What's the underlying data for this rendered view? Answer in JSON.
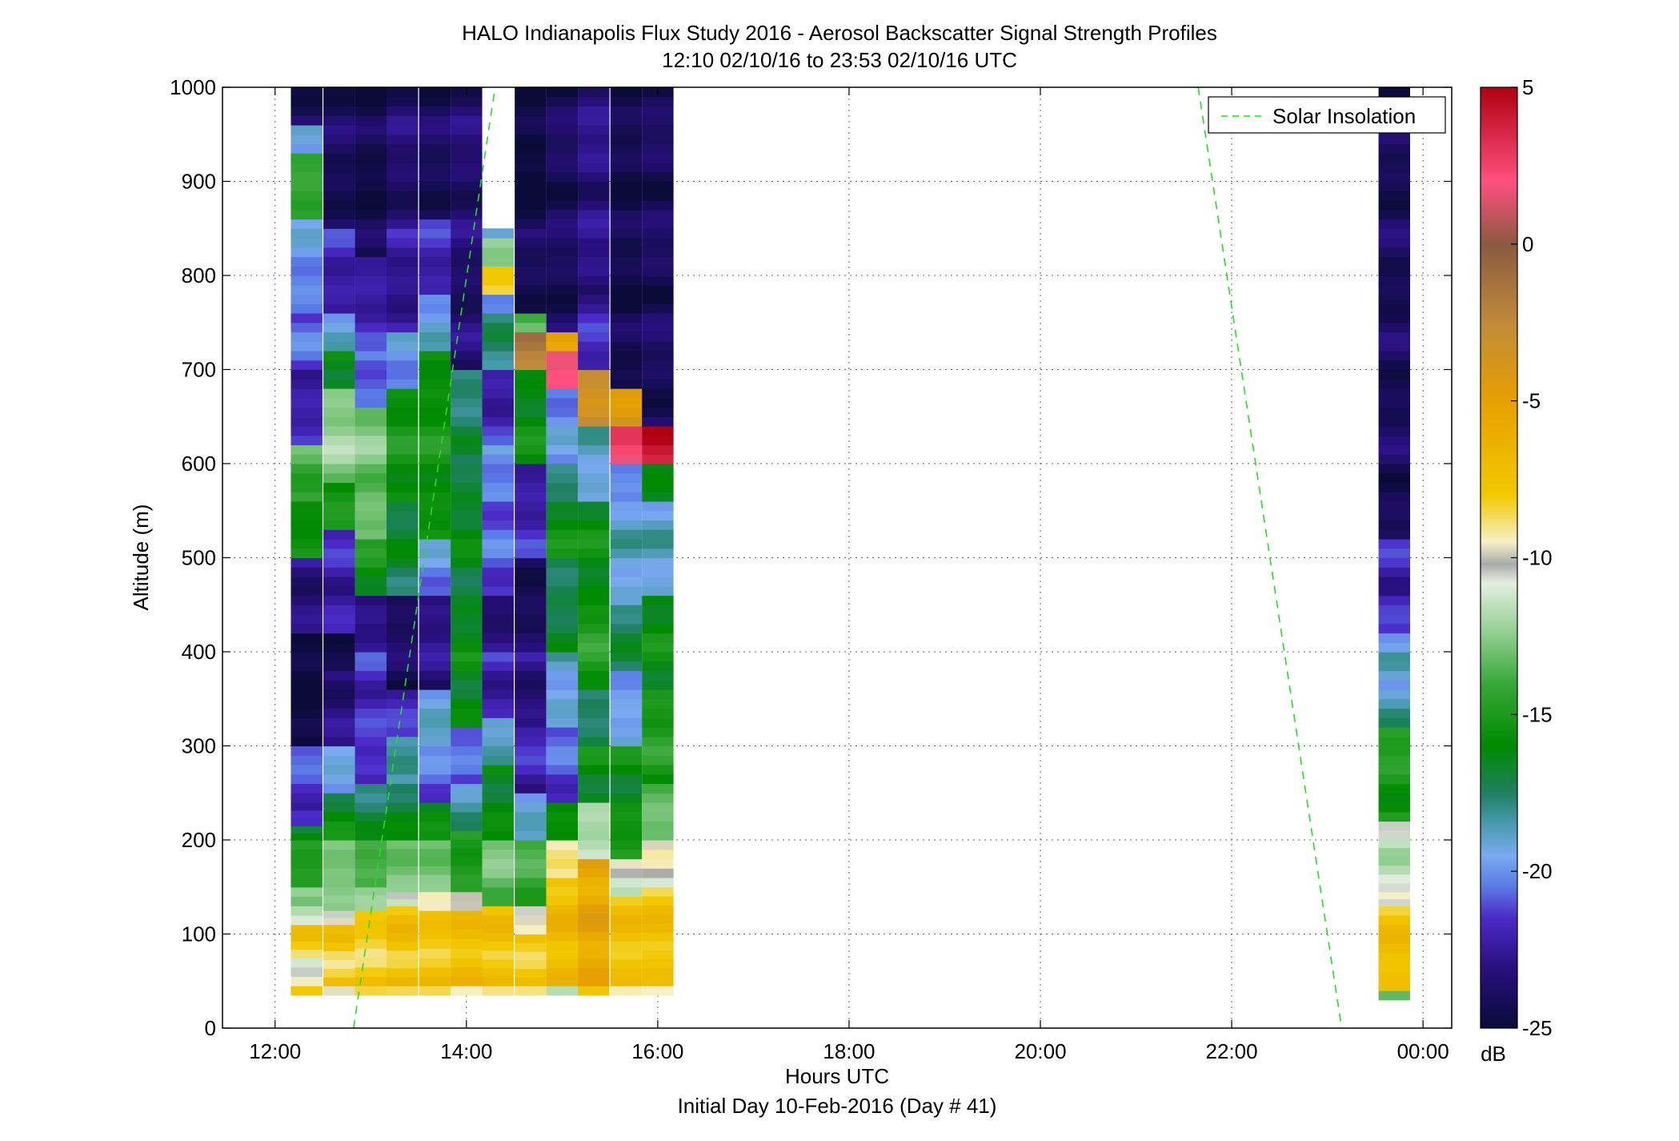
{
  "chart_data": {
    "type": "heatmap",
    "title": "HALO Indianapolis Flux Study 2016 - Aerosol Backscatter Signal Strength Profiles",
    "subtitle": "12:10 02/10/16 to 23:53 02/10/16  UTC",
    "xlabel": "Hours UTC",
    "xlabel2": "Initial Day 10-Feb-2016 (Day # 41)",
    "ylabel": "Altitude (m)",
    "xlim_hours": [
      11.45,
      24.3
    ],
    "ylim": [
      0,
      1000
    ],
    "x_ticks": [
      {
        "value": 12,
        "label": "12:00"
      },
      {
        "value": 14,
        "label": "14:00"
      },
      {
        "value": 16,
        "label": "16:00"
      },
      {
        "value": 18,
        "label": "18:00"
      },
      {
        "value": 20,
        "label": "20:00"
      },
      {
        "value": 22,
        "label": "22:00"
      },
      {
        "value": 24,
        "label": "00:00"
      }
    ],
    "y_ticks": [
      0,
      100,
      200,
      300,
      400,
      500,
      600,
      700,
      800,
      900,
      1000
    ],
    "grid": true,
    "legend": {
      "position": "top-right",
      "entries": [
        {
          "name": "Solar Insolation",
          "color": "#22e022",
          "style": "dashed"
        }
      ]
    },
    "colorbar": {
      "label": "dB",
      "range": [
        -25,
        5
      ],
      "ticks": [
        5,
        0,
        -5,
        -10,
        -15,
        -20,
        -25
      ],
      "stops": [
        {
          "v": -25,
          "c": "#0b0b3a"
        },
        {
          "v": -23,
          "c": "#2a1080"
        },
        {
          "v": -21.5,
          "c": "#4b2ac8"
        },
        {
          "v": -20.5,
          "c": "#5a7ae6"
        },
        {
          "v": -19.5,
          "c": "#7aaaf0"
        },
        {
          "v": -18.5,
          "c": "#4a9ab0"
        },
        {
          "v": -17.5,
          "c": "#1e8060"
        },
        {
          "v": -16,
          "c": "#008a00"
        },
        {
          "v": -14,
          "c": "#3aa83a"
        },
        {
          "v": -12.5,
          "c": "#8ccc8c"
        },
        {
          "v": -10.8,
          "c": "#e4eee0"
        },
        {
          "v": -10.2,
          "c": "#aaaaaa"
        },
        {
          "v": -9.5,
          "c": "#f6f0c8"
        },
        {
          "v": -8,
          "c": "#f2c800"
        },
        {
          "v": -5,
          "c": "#e6a000"
        },
        {
          "v": -2.5,
          "c": "#c08a3a"
        },
        {
          "v": 0,
          "c": "#8a5a40"
        },
        {
          "v": 2,
          "c": "#ff5080"
        },
        {
          "v": 5,
          "c": "#b00010"
        }
      ]
    },
    "solar_insolation_lines": [
      {
        "x": [
          12.82,
          14.3
        ],
        "y": [
          0,
          1000
        ]
      },
      {
        "x": [
          21.65,
          23.15
        ],
        "y": [
          1000,
          0
        ]
      }
    ],
    "profiles": [
      {
        "time": 12.33,
        "segments": [
          [
            35,
            45,
            -9
          ],
          [
            45,
            75,
            -10.2
          ],
          [
            75,
            110,
            -8
          ],
          [
            110,
            130,
            -10.8
          ],
          [
            130,
            150,
            -12
          ],
          [
            150,
            200,
            -15
          ],
          [
            200,
            215,
            -17
          ],
          [
            215,
            240,
            -22
          ],
          [
            240,
            300,
            -21
          ],
          [
            300,
            420,
            -25
          ],
          [
            420,
            500,
            -23
          ],
          [
            500,
            560,
            -16
          ],
          [
            560,
            620,
            -14
          ],
          [
            620,
            700,
            -22
          ],
          [
            700,
            760,
            -21
          ],
          [
            760,
            860,
            -20
          ],
          [
            860,
            930,
            -14
          ],
          [
            930,
            960,
            -20
          ],
          [
            960,
            1000,
            -24
          ]
        ]
      },
      {
        "time": 12.67,
        "segments": [
          [
            35,
            45,
            -10.8
          ],
          [
            45,
            110,
            -8
          ],
          [
            110,
            125,
            -9.5
          ],
          [
            125,
            150,
            -12.5
          ],
          [
            150,
            200,
            -13
          ],
          [
            200,
            250,
            -16
          ],
          [
            250,
            300,
            -19.5
          ],
          [
            300,
            380,
            -23
          ],
          [
            380,
            420,
            -25
          ],
          [
            420,
            530,
            -22
          ],
          [
            530,
            580,
            -15
          ],
          [
            580,
            680,
            -12.5
          ],
          [
            680,
            720,
            -16
          ],
          [
            720,
            760,
            -19.5
          ],
          [
            760,
            850,
            -22
          ],
          [
            850,
            1000,
            -24
          ]
        ]
      },
      {
        "time": 13.0,
        "segments": [
          [
            35,
            45,
            -9.5
          ],
          [
            45,
            125,
            -8
          ],
          [
            125,
            150,
            -12
          ],
          [
            150,
            200,
            -14
          ],
          [
            200,
            260,
            -17
          ],
          [
            260,
            300,
            -22
          ],
          [
            300,
            400,
            -21.5
          ],
          [
            400,
            460,
            -23
          ],
          [
            460,
            520,
            -15.5
          ],
          [
            520,
            660,
            -13
          ],
          [
            660,
            720,
            -20.5
          ],
          [
            720,
            820,
            -22
          ],
          [
            820,
            1000,
            -24.5
          ]
        ]
      },
      {
        "time": 13.33,
        "segments": [
          [
            35,
            45,
            -9.5
          ],
          [
            45,
            130,
            -7.5
          ],
          [
            130,
            145,
            -10.2
          ],
          [
            145,
            200,
            -13
          ],
          [
            200,
            260,
            -16.5
          ],
          [
            260,
            310,
            -18.5
          ],
          [
            310,
            360,
            -21.5
          ],
          [
            360,
            460,
            -24
          ],
          [
            460,
            560,
            -17
          ],
          [
            560,
            680,
            -15.5
          ],
          [
            680,
            740,
            -20
          ],
          [
            740,
            850,
            -22.5
          ],
          [
            850,
            1000,
            -23.5
          ]
        ]
      },
      {
        "time": 13.67,
        "segments": [
          [
            35,
            45,
            -9.5
          ],
          [
            45,
            125,
            -7.5
          ],
          [
            125,
            145,
            -9.5
          ],
          [
            145,
            200,
            -13
          ],
          [
            200,
            240,
            -16
          ],
          [
            240,
            300,
            -20.5
          ],
          [
            300,
            360,
            -19
          ],
          [
            360,
            460,
            -23
          ],
          [
            460,
            520,
            -20
          ],
          [
            520,
            720,
            -15.5
          ],
          [
            720,
            780,
            -19.5
          ],
          [
            780,
            860,
            -22
          ],
          [
            860,
            1000,
            -24
          ]
        ]
      },
      {
        "time": 14.0,
        "segments": [
          [
            35,
            45,
            -10.2
          ],
          [
            45,
            125,
            -7
          ],
          [
            125,
            145,
            -10
          ],
          [
            145,
            210,
            -15
          ],
          [
            210,
            260,
            -18
          ],
          [
            260,
            320,
            -21
          ],
          [
            320,
            400,
            -16
          ],
          [
            400,
            600,
            -16.5
          ],
          [
            600,
            700,
            -17.5
          ],
          [
            700,
            1000,
            -23.5
          ]
        ]
      },
      {
        "time": 14.33,
        "segments": [
          [
            35,
            45,
            -9.5
          ],
          [
            45,
            130,
            -7.5
          ],
          [
            130,
            200,
            -13
          ],
          [
            200,
            280,
            -16
          ],
          [
            280,
            330,
            -19
          ],
          [
            330,
            400,
            -22
          ],
          [
            400,
            460,
            -23.5
          ],
          [
            460,
            560,
            -21
          ],
          [
            560,
            620,
            -20
          ],
          [
            620,
            700,
            -22
          ],
          [
            700,
            760,
            -18
          ],
          [
            760,
            780,
            -19.5
          ],
          [
            780,
            810,
            -8
          ],
          [
            810,
            840,
            -12.5
          ],
          [
            840,
            850,
            -20
          ]
        ]
      },
      {
        "time": 14.67,
        "segments": [
          [
            35,
            45,
            -9.5
          ],
          [
            45,
            100,
            -8
          ],
          [
            100,
            130,
            -10.2
          ],
          [
            130,
            200,
            -14
          ],
          [
            200,
            250,
            -19
          ],
          [
            250,
            320,
            -22
          ],
          [
            320,
            400,
            -23
          ],
          [
            400,
            500,
            -24
          ],
          [
            500,
            600,
            -22
          ],
          [
            600,
            700,
            -16
          ],
          [
            700,
            740,
            -2
          ],
          [
            740,
            760,
            -14
          ],
          [
            760,
            850,
            -24
          ],
          [
            850,
            1000,
            -25
          ]
        ]
      },
      {
        "time": 15.0,
        "segments": [
          [
            35,
            45,
            -12
          ],
          [
            45,
            160,
            -7
          ],
          [
            160,
            200,
            -9.5
          ],
          [
            200,
            240,
            -16
          ],
          [
            240,
            320,
            -21
          ],
          [
            320,
            400,
            -19
          ],
          [
            400,
            500,
            -17
          ],
          [
            500,
            560,
            -16
          ],
          [
            560,
            600,
            -17.5
          ],
          [
            600,
            680,
            -20
          ],
          [
            680,
            720,
            2
          ],
          [
            720,
            740,
            -6
          ],
          [
            740,
            1000,
            -24
          ]
        ]
      },
      {
        "time": 15.33,
        "segments": [
          [
            35,
            45,
            -8
          ],
          [
            45,
            180,
            -5.5
          ],
          [
            180,
            240,
            -12
          ],
          [
            240,
            300,
            -16
          ],
          [
            300,
            360,
            -17.5
          ],
          [
            360,
            450,
            -15
          ],
          [
            450,
            560,
            -16
          ],
          [
            560,
            640,
            -19
          ],
          [
            640,
            700,
            -3
          ],
          [
            700,
            780,
            -22
          ],
          [
            780,
            1000,
            -23
          ]
        ]
      },
      {
        "time": 15.67,
        "segments": [
          [
            35,
            45,
            -9.5
          ],
          [
            45,
            140,
            -7.5
          ],
          [
            140,
            180,
            -10.5
          ],
          [
            180,
            240,
            -15.5
          ],
          [
            240,
            300,
            -16
          ],
          [
            300,
            380,
            -19.5
          ],
          [
            380,
            450,
            -17.5
          ],
          [
            450,
            560,
            -19
          ],
          [
            560,
            600,
            -20
          ],
          [
            600,
            640,
            2
          ],
          [
            640,
            680,
            -4
          ],
          [
            680,
            1000,
            -24.5
          ]
        ]
      },
      {
        "time": 16.0,
        "segments": [
          [
            35,
            45,
            -9.5
          ],
          [
            45,
            150,
            -7.5
          ],
          [
            150,
            200,
            -10.2
          ],
          [
            200,
            260,
            -13
          ],
          [
            260,
            360,
            -15
          ],
          [
            360,
            460,
            -16
          ],
          [
            460,
            560,
            -19
          ],
          [
            560,
            600,
            -16
          ],
          [
            600,
            640,
            4
          ],
          [
            640,
            1000,
            -24
          ]
        ]
      },
      {
        "time": 23.7,
        "segments": [
          [
            30,
            40,
            -13
          ],
          [
            40,
            130,
            -7.5
          ],
          [
            130,
            145,
            -9.5
          ],
          [
            145,
            220,
            -11.5
          ],
          [
            220,
            320,
            -15
          ],
          [
            320,
            360,
            -18
          ],
          [
            360,
            400,
            -19
          ],
          [
            400,
            420,
            -20
          ],
          [
            420,
            460,
            -21.5
          ],
          [
            460,
            520,
            -22
          ],
          [
            520,
            1000,
            -24
          ]
        ]
      }
    ]
  }
}
